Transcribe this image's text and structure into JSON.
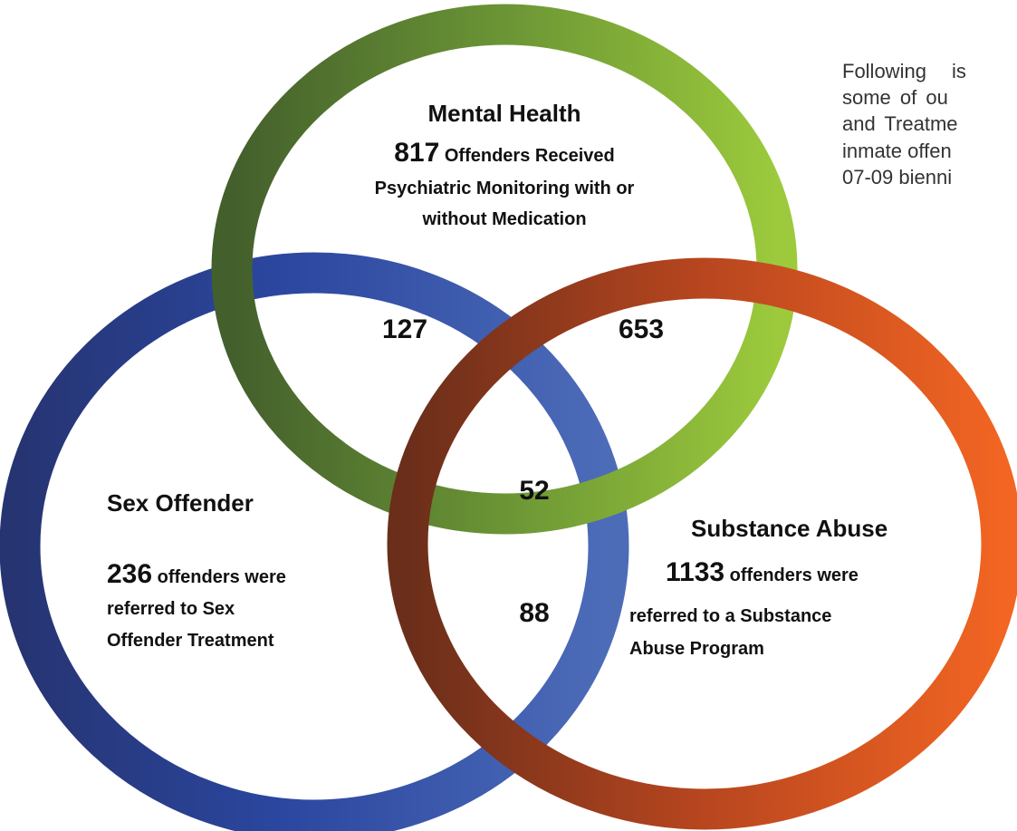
{
  "circles": [
    {
      "title": "Mental Health",
      "count": 817,
      "lines": [
        "Offenders Received",
        "Psychiatric Monitoring with or",
        "without Medication"
      ]
    },
    {
      "title": "Sex Offender",
      "count": 236,
      "lines": [
        "offenders were",
        "referred to Sex",
        "Offender Treatment"
      ]
    },
    {
      "title": "Substance Abuse",
      "count": 1133,
      "lines": [
        "offenders were",
        "referred to a Substance",
        "Abuse Program"
      ]
    }
  ],
  "overlaps": [
    {
      "sets": "Mental Health & Sex Offender",
      "count": 127
    },
    {
      "sets": "Mental Health & Substance Abuse",
      "count": 653
    },
    {
      "sets": "All three",
      "count": 52
    },
    {
      "sets": "Sex Offender & Substance Abuse",
      "count": 88
    }
  ],
  "side_text": [
    "Following is",
    "some of ou",
    "and Treatme",
    "inmate offen",
    "07-09 bienni"
  ]
}
